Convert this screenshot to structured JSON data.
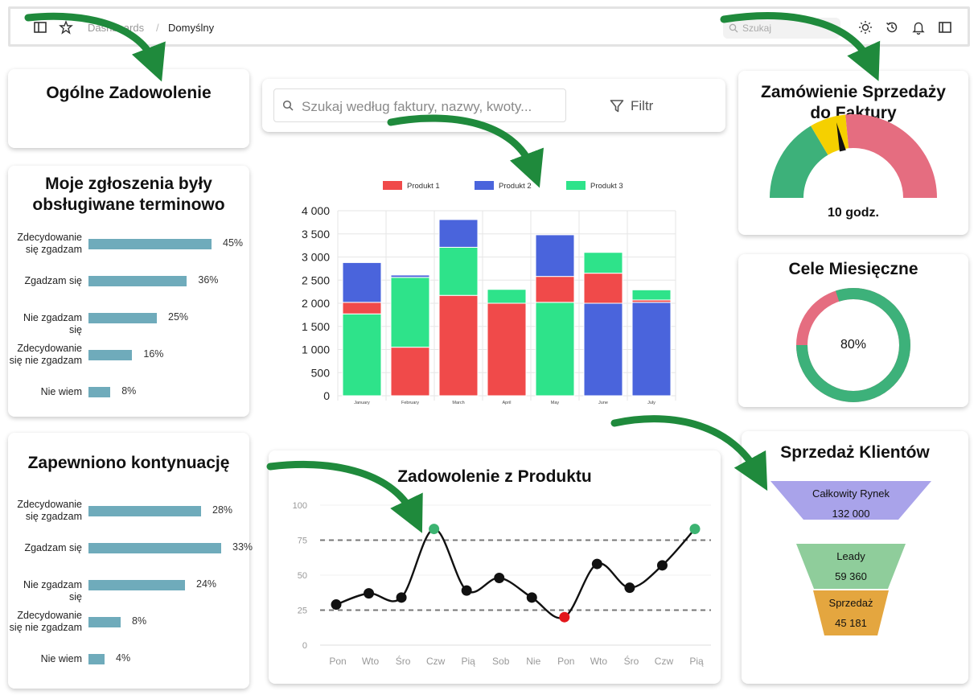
{
  "topbar": {
    "breadcrumb_parent": "Dashboards",
    "breadcrumb_sep": "/",
    "breadcrumb_current": "Domyślny",
    "search_placeholder": "Szukaj"
  },
  "overall_satisfaction": {
    "title": "Ogólne Zadowolenie"
  },
  "tickets_on_time": {
    "title_line1": "Moje zgłoszenia były",
    "title_line2": "obsługiwane terminowo",
    "rows": [
      {
        "label_line1": "Zdecydowanie",
        "label_line2": "się zgadzam",
        "value": 45,
        "pct": "45%"
      },
      {
        "label_line1": "Zgadzam się",
        "label_line2": "",
        "value": 36,
        "pct": "36%"
      },
      {
        "label_line1": "Nie zgadzam się",
        "label_line2": "",
        "value": 25,
        "pct": "25%"
      },
      {
        "label_line1": "Zdecydowanie",
        "label_line2": "się nie zgadzam",
        "value": 16,
        "pct": "16%"
      },
      {
        "label_line1": "Nie wiem",
        "label_line2": "",
        "value": 8,
        "pct": "8%"
      }
    ]
  },
  "follow_up": {
    "title": "Zapewniono kontynuację",
    "rows": [
      {
        "label_line1": "Zdecydowanie",
        "label_line2": "się zgadzam",
        "value": 28,
        "pct": "28%"
      },
      {
        "label_line1": "Zgadzam się",
        "label_line2": "",
        "value": 33,
        "pct": "33%"
      },
      {
        "label_line1": "Nie zgadzam się",
        "label_line2": "",
        "value": 24,
        "pct": "24%"
      },
      {
        "label_line1": "Zdecydowanie",
        "label_line2": "się nie zgadzam",
        "value": 8,
        "pct": "8%"
      },
      {
        "label_line1": "Nie wiem",
        "label_line2": "",
        "value": 4,
        "pct": "4%"
      }
    ]
  },
  "invoice_search": {
    "placeholder": "Szukaj według faktury, nazwy, kwoty...",
    "filter_label": "Filtr"
  },
  "chart_data": [
    {
      "type": "bar",
      "stacked": true,
      "categories": [
        "January",
        "February",
        "March",
        "April",
        "May",
        "June",
        "July"
      ],
      "yticks": [
        "0",
        "500",
        "1 000",
        "1 500",
        "2 000",
        "2 500",
        "3 000",
        "3 500",
        "4 000"
      ],
      "ylim": [
        0,
        4000
      ],
      "legend_position": "top",
      "grid": true,
      "series": [
        {
          "name": "Produkt 1",
          "color": "#f04a4a",
          "values": [
            250,
            1050,
            2170,
            2000,
            560,
            650,
            50
          ]
        },
        {
          "name": "Produkt 2",
          "color": "#4a64dc",
          "values": [
            860,
            50,
            600,
            0,
            900,
            2000,
            2020
          ]
        },
        {
          "name": "Produkt 3",
          "color": "#2ee38a",
          "values": [
            1770,
            1510,
            1040,
            300,
            2020,
            450,
            220
          ]
        }
      ]
    },
    {
      "type": "line",
      "title": "Zadowolenie z Produktu",
      "categories": [
        "Pon",
        "Wto",
        "Śro",
        "Czw",
        "Pią",
        "Sob",
        "Nie",
        "Pon",
        "Wto",
        "Śro",
        "Czw",
        "Pią"
      ],
      "yticks": [
        "0",
        "25",
        "50",
        "75",
        "100"
      ],
      "ylim": [
        0,
        100
      ],
      "reference_lines": [
        75,
        25
      ],
      "series": [
        {
          "values": [
            29,
            37,
            34,
            83,
            39,
            48,
            34,
            20,
            58,
            41,
            57,
            83
          ]
        }
      ],
      "highlight_color_high": "#3cb371",
      "highlight_color_low": "#e3161b"
    },
    {
      "type": "gauge",
      "title_line1": "Zamówienie Sprzedaży",
      "title_line2": "do Faktury",
      "value_label": "10 godz.",
      "value_fraction": 0.43,
      "segments": [
        {
          "to": 0.33,
          "color": "#3db17a"
        },
        {
          "to": 0.47,
          "color": "#f5d000"
        },
        {
          "to": 1.0,
          "color": "#e56d80"
        }
      ]
    },
    {
      "type": "donut",
      "title": "Cele Miesięczne",
      "value": 80,
      "value_label": "80%",
      "color_progress": "#3db17a",
      "color_rest": "#e56d80"
    },
    {
      "type": "funnel",
      "title": "Sprzedaż Klientów",
      "stages": [
        {
          "name": "Całkowity Rynek",
          "value": "132 000",
          "color": "#a9a3ea"
        },
        {
          "name": "Leady",
          "value": "59 360",
          "color": "#8fcd9b"
        },
        {
          "name": "Sprzedaż",
          "value": "45 181",
          "color": "#e4a63f"
        }
      ]
    }
  ]
}
